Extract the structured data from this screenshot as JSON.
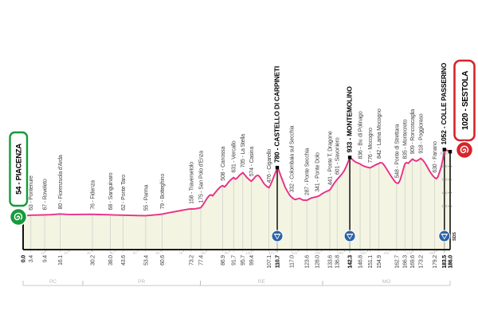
{
  "colors": {
    "profile_line": "#e73086",
    "profile_fill": "#f3f4e2",
    "axis": "#1c1c1c",
    "gridline": "#cccccc",
    "muted": "#b8b8b8",
    "label_text": "#3f3f3f",
    "bold_text": "#000000",
    "start_green": "#169a3b",
    "finish_red": "#d8232a",
    "timecheck_blue": "#2b62a8"
  },
  "icons": {
    "start_icon": "trofeo-spiral-white-on-green",
    "finish_icon": "trofeo-spiral-white-on-red",
    "timecheck_icon": "triangle-down-white-on-blue-circle"
  },
  "route": {
    "start_label": "54 - PIACENZA",
    "finish_label": "1020 - SESTOLA",
    "timecheck_side_label": "SDS"
  },
  "chart_data": {
    "type": "area",
    "x_unit": "km",
    "y_unit": "m",
    "x_range_km": [
      0,
      186
    ],
    "ylim_m": [
      0,
      1052
    ],
    "km_axis_minor_ticks": [
      10,
      20,
      30,
      40,
      50,
      60,
      70,
      80,
      90,
      100,
      110,
      120,
      130,
      140,
      150,
      160,
      170,
      180
    ],
    "elevation_axis_ticks_m": [
      200,
      400,
      600,
      800,
      1000
    ],
    "start": {
      "km": 0.0,
      "km_label": "0.0",
      "elev": 54,
      "name": "PIACENZA"
    },
    "finish": {
      "km": 186.0,
      "km_label": "186.0",
      "elev": 1020,
      "name": "SESTOLA"
    },
    "provinces": [
      {
        "label": "PC",
        "from_km": 0,
        "to_km": 26
      },
      {
        "label": "PR",
        "from_km": 26,
        "to_km": 77.2
      },
      {
        "label": "RE",
        "from_km": 77.2,
        "to_km": 130.5
      },
      {
        "label": "MO",
        "from_km": 130.5,
        "to_km": 186
      }
    ],
    "waypoints": [
      {
        "km": 3.4,
        "km_label": "3.4",
        "elev": 63,
        "label": "63 - Pontenure",
        "bold": false,
        "marker": false
      },
      {
        "km": 9.4,
        "km_label": "9.4",
        "elev": 67,
        "label": "67 - Roveleto",
        "bold": false,
        "marker": false
      },
      {
        "km": 16.1,
        "km_label": "16.1",
        "elev": 80,
        "label": "80 - Fiorenzuola d'Arda",
        "bold": false,
        "marker": false
      },
      {
        "km": 30.2,
        "km_label": "30.2",
        "elev": 76,
        "label": "76 - Fidenza",
        "bold": false,
        "marker": false
      },
      {
        "km": 38.0,
        "km_label": "38.0",
        "elev": 68,
        "label": "68 - Sanguinaro",
        "bold": false,
        "marker": false
      },
      {
        "km": 43.6,
        "km_label": "43.6",
        "elev": 62,
        "label": "62 - Ponte Taro",
        "bold": false,
        "marker": false
      },
      {
        "km": 53.4,
        "km_label": "53.4",
        "elev": 55,
        "label": "55 - Parma",
        "bold": false,
        "marker": false
      },
      {
        "km": 60.6,
        "km_label": "60.6",
        "elev": 79,
        "label": "79 - Botteghino",
        "bold": false,
        "marker": false
      },
      {
        "km": 73.2,
        "km_label": "73.2",
        "elev": 158,
        "label": "158 - Traversetolo",
        "bold": false,
        "marker": false
      },
      {
        "km": 77.4,
        "km_label": "77.4",
        "elev": 175,
        "label": "175 - San Polo d'Enza",
        "bold": false,
        "marker": false
      },
      {
        "km": 86.9,
        "km_label": "86.9",
        "elev": 508,
        "label": "508 - Canossa",
        "bold": false,
        "marker": false
      },
      {
        "km": 91.7,
        "km_label": "91.7",
        "elev": 631,
        "label": "631 - Vercallo",
        "bold": false,
        "marker": false
      },
      {
        "km": 95.7,
        "km_label": "95.7",
        "elev": 705,
        "label": "705 - La Stella",
        "bold": false,
        "marker": false
      },
      {
        "km": 99.4,
        "km_label": "99.4",
        "elev": 574,
        "label": "574 - Casina",
        "bold": false,
        "marker": false
      },
      {
        "km": 107.1,
        "km_label": "107.1",
        "elev": 476,
        "label": "476 - Cigarello",
        "bold": false,
        "marker": false
      },
      {
        "km": 110.7,
        "km_label": "110.7",
        "elev": 780,
        "label": "780 - CASTELLO DI CARPINETI",
        "bold": true,
        "marker": true
      },
      {
        "km": 117.0,
        "km_label": "117.0",
        "elev": 332,
        "label": "332 - Colombaia sul Secchia",
        "bold": false,
        "marker": false
      },
      {
        "km": 123.6,
        "km_label": "123.6",
        "elev": 287,
        "label": "287 - Ponte Secchia",
        "bold": false,
        "marker": false
      },
      {
        "km": 128.0,
        "km_label": "128.0",
        "elev": 341,
        "label": "341 - Ponte Dolo",
        "bold": false,
        "marker": false
      },
      {
        "km": 133.6,
        "km_label": "133.6",
        "elev": 441,
        "label": "441 - Ponte T. Dragone",
        "bold": false,
        "marker": false
      },
      {
        "km": 136.8,
        "km_label": "136.8",
        "elev": 601,
        "label": "601 - Savoniero",
        "bold": false,
        "marker": false
      },
      {
        "km": 142.3,
        "km_label": "142.3",
        "elev": 933,
        "label": "933 - MONTEMOLINO",
        "bold": true,
        "marker": true
      },
      {
        "km": 146.8,
        "km_label": "146.8",
        "elev": 836,
        "label": "836 - Bv. di Polinago",
        "bold": false,
        "marker": false
      },
      {
        "km": 151.1,
        "km_label": "151.1",
        "elev": 776,
        "label": "776 - Mocogno",
        "bold": false,
        "marker": false
      },
      {
        "km": 154.9,
        "km_label": "154.9",
        "elev": 842,
        "label": "842 - Lama Mocogno",
        "bold": false,
        "marker": false
      },
      {
        "km": 162.7,
        "km_label": "162.7",
        "elev": 548,
        "label": "548 - Ponte di Strettara",
        "bold": false,
        "marker": false
      },
      {
        "km": 166.3,
        "km_label": "166.3",
        "elev": 835,
        "label": "835 - Montecreto",
        "bold": false,
        "marker": false
      },
      {
        "km": 169.6,
        "km_label": "169.6",
        "elev": 909,
        "label": "909 - Roncoscaglia",
        "bold": false,
        "marker": false
      },
      {
        "km": 173.2,
        "km_label": "173.2",
        "elev": 918,
        "label": "918 - Poggioraso",
        "bold": false,
        "marker": false
      },
      {
        "km": 179.2,
        "km_label": "179.2",
        "elev": 630,
        "label": "630 - Fanano",
        "bold": false,
        "marker": false
      },
      {
        "km": 183.5,
        "km_label": "183.5",
        "elev": 1052,
        "label": "1052 - COLLE PASSERINO",
        "bold": true,
        "marker": true,
        "side_label": "SDS"
      }
    ],
    "profile_points": [
      [
        0,
        54
      ],
      [
        1.5,
        57
      ],
      [
        3.4,
        63
      ],
      [
        6,
        64
      ],
      [
        9.4,
        67
      ],
      [
        12,
        70
      ],
      [
        16.1,
        80
      ],
      [
        19,
        75
      ],
      [
        22,
        73
      ],
      [
        26,
        75
      ],
      [
        30.2,
        76
      ],
      [
        33,
        72
      ],
      [
        38,
        68
      ],
      [
        40,
        65
      ],
      [
        43.6,
        62
      ],
      [
        47,
        59
      ],
      [
        50,
        57
      ],
      [
        53.4,
        55
      ],
      [
        56,
        62
      ],
      [
        58.5,
        70
      ],
      [
        60.6,
        79
      ],
      [
        63,
        95
      ],
      [
        66,
        115
      ],
      [
        69,
        135
      ],
      [
        71.5,
        150
      ],
      [
        73.2,
        158
      ],
      [
        74.5,
        155
      ],
      [
        75.5,
        162
      ],
      [
        77.4,
        175
      ],
      [
        78.3,
        215
      ],
      [
        79.2,
        265
      ],
      [
        80.2,
        320
      ],
      [
        81,
        355
      ],
      [
        81.8,
        370
      ],
      [
        82.6,
        355
      ],
      [
        83.6,
        400
      ],
      [
        84.8,
        450
      ],
      [
        86,
        490
      ],
      [
        86.9,
        508
      ],
      [
        87.7,
        488
      ],
      [
        88.6,
        520
      ],
      [
        89.6,
        565
      ],
      [
        90.6,
        600
      ],
      [
        91.7,
        631
      ],
      [
        92.5,
        605
      ],
      [
        93.3,
        625
      ],
      [
        94.3,
        665
      ],
      [
        95.7,
        705
      ],
      [
        96.6,
        668
      ],
      [
        97.5,
        630
      ],
      [
        98.4,
        600
      ],
      [
        99.4,
        574
      ],
      [
        100.4,
        610
      ],
      [
        101.4,
        650
      ],
      [
        102.2,
        665
      ],
      [
        103,
        645
      ],
      [
        104,
        590
      ],
      [
        105,
        535
      ],
      [
        106,
        500
      ],
      [
        107.1,
        476
      ],
      [
        107.8,
        520
      ],
      [
        108.6,
        590
      ],
      [
        109.4,
        660
      ],
      [
        110.1,
        720
      ],
      [
        110.7,
        780
      ],
      [
        111.4,
        740
      ],
      [
        112.2,
        660
      ],
      [
        113.2,
        570
      ],
      [
        114.2,
        480
      ],
      [
        115.3,
        410
      ],
      [
        116.2,
        360
      ],
      [
        117,
        332
      ],
      [
        117.8,
        310
      ],
      [
        118.6,
        298
      ],
      [
        119.5,
        308
      ],
      [
        120.4,
        318
      ],
      [
        121.2,
        300
      ],
      [
        122,
        290
      ],
      [
        123.6,
        287
      ],
      [
        124.6,
        305
      ],
      [
        125.6,
        322
      ],
      [
        126.6,
        330
      ],
      [
        128,
        341
      ],
      [
        129,
        355
      ],
      [
        130,
        380
      ],
      [
        131.2,
        405
      ],
      [
        132.4,
        425
      ],
      [
        133.6,
        441
      ],
      [
        134.5,
        490
      ],
      [
        135.6,
        550
      ],
      [
        136.8,
        601
      ],
      [
        137.8,
        640
      ],
      [
        138.8,
        680
      ],
      [
        139.8,
        730
      ],
      [
        140.8,
        800
      ],
      [
        141.6,
        870
      ],
      [
        142.3,
        933
      ],
      [
        143,
        915
      ],
      [
        143.8,
        890
      ],
      [
        144.8,
        865
      ],
      [
        146,
        845
      ],
      [
        146.8,
        836
      ],
      [
        147.8,
        812
      ],
      [
        149,
        795
      ],
      [
        150,
        785
      ],
      [
        151.1,
        776
      ],
      [
        152,
        790
      ],
      [
        153,
        812
      ],
      [
        154,
        828
      ],
      [
        154.9,
        842
      ],
      [
        155.7,
        855
      ],
      [
        156.5,
        848
      ],
      [
        157.4,
        810
      ],
      [
        158.3,
        760
      ],
      [
        159.3,
        705
      ],
      [
        160.3,
        650
      ],
      [
        161.3,
        600
      ],
      [
        162.2,
        560
      ],
      [
        162.7,
        548
      ],
      [
        163.4,
        542
      ],
      [
        164.2,
        590
      ],
      [
        165,
        680
      ],
      [
        165.7,
        770
      ],
      [
        166.3,
        835
      ],
      [
        167,
        855
      ],
      [
        167.8,
        845
      ],
      [
        168.6,
        875
      ],
      [
        169.6,
        909
      ],
      [
        170.4,
        890
      ],
      [
        171.2,
        878
      ],
      [
        172.2,
        895
      ],
      [
        173.2,
        918
      ],
      [
        174.2,
        890
      ],
      [
        175.2,
        840
      ],
      [
        176.2,
        780
      ],
      [
        177.2,
        720
      ],
      [
        178.2,
        668
      ],
      [
        179.2,
        630
      ],
      [
        180,
        612
      ],
      [
        180.7,
        640
      ],
      [
        181.4,
        710
      ],
      [
        182.1,
        790
      ],
      [
        182.8,
        900
      ],
      [
        183.5,
        1052
      ],
      [
        184.3,
        1046
      ],
      [
        185.1,
        1032
      ],
      [
        186,
        1020
      ]
    ]
  }
}
